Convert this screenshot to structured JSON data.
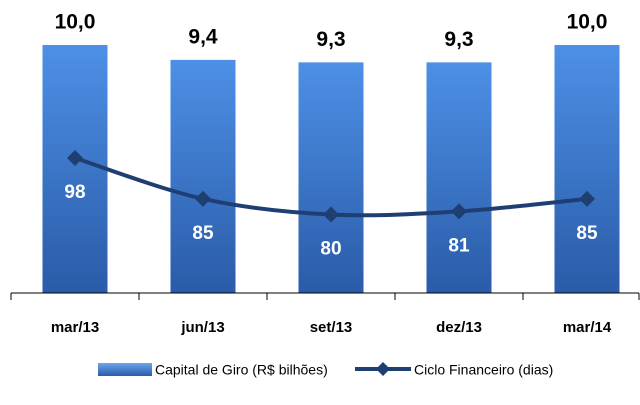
{
  "chart_data": {
    "type": "bar",
    "categories": [
      "mar/13",
      "jun/13",
      "set/13",
      "dez/13",
      "mar/14"
    ],
    "series": [
      {
        "name": "Capital de Giro (R$ bilhões)",
        "type": "bar",
        "color": "#3f7fd6",
        "values": [
          10.0,
          9.4,
          9.3,
          9.3,
          10.0
        ],
        "value_labels": [
          "10,0",
          "9,4",
          "9,3",
          "9,3",
          "10,0"
        ]
      },
      {
        "name": "Ciclo Financeiro (dias)",
        "type": "line",
        "axis": "y2",
        "color": "#1f3f73",
        "values": [
          98,
          85,
          80,
          81,
          85
        ]
      }
    ],
    "ylim": [
      0,
      10
    ],
    "y2lim": [
      55,
      134
    ],
    "grid": false,
    "legend": "bottom"
  }
}
